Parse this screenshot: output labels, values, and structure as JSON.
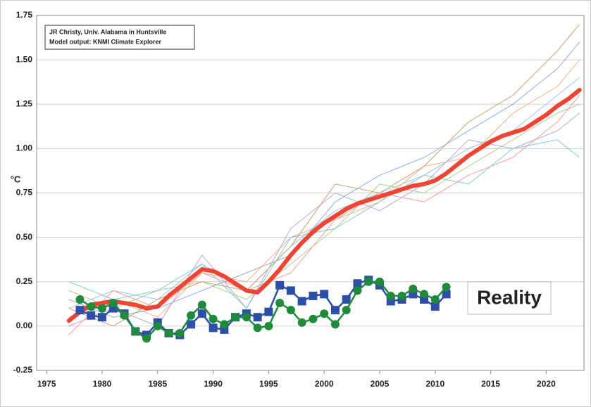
{
  "chart_data": {
    "type": "line",
    "annotations": [
      "JR Christy, Univ. Alabama in Huntsville",
      "Model output: KNMI Climate Explorer"
    ],
    "callout": "Reality",
    "ylabel": "°C",
    "xlim": [
      1974.1,
      2023.4
    ],
    "xticks": [
      1975,
      1980,
      1985,
      1990,
      1995,
      2000,
      2005,
      2010,
      2015,
      2020
    ],
    "ylim": [
      -0.25,
      1.75
    ],
    "yticks": [
      -0.25,
      {
        "value": 0,
        "label": "0.00"
      },
      0.25,
      {
        "value": 0.5,
        "label": "0.50"
      },
      0.75,
      {
        "value": 1,
        "label": "1.00"
      },
      1.25,
      {
        "value": 1.5,
        "label": "1.50"
      },
      1.75
    ],
    "grid": true,
    "series": [
      {
        "color": "#9dc3e6",
        "width": 1,
        "x": [
          1977,
          1981,
          1985,
          1989,
          1993,
          1997,
          2001,
          2005,
          2009,
          2013,
          2017,
          2021,
          2023
        ],
        "values": [
          0.1,
          0.2,
          0.15,
          0.35,
          0.2,
          0.45,
          0.65,
          0.75,
          0.85,
          1.0,
          1.1,
          1.3,
          1.4
        ]
      },
      {
        "color": "#f4b183",
        "width": 1,
        "x": [
          1977,
          1981,
          1985,
          1989,
          1993,
          1997,
          2001,
          2005,
          2009,
          2013,
          2017,
          2021,
          2023
        ],
        "values": [
          0.05,
          0.15,
          0.05,
          0.3,
          0.25,
          0.5,
          0.6,
          0.7,
          0.9,
          0.95,
          1.2,
          1.35,
          1.5
        ]
      },
      {
        "color": "#a9d18e",
        "width": 1,
        "x": [
          1977,
          1981,
          1985,
          1989,
          1993,
          1997,
          2001,
          2005,
          2009,
          2013,
          2017,
          2021,
          2023
        ],
        "values": [
          0.2,
          0.1,
          0.2,
          0.25,
          0.15,
          0.35,
          0.55,
          0.8,
          0.75,
          0.9,
          1.05,
          1.2,
          1.25
        ]
      },
      {
        "color": "#b4a7d6",
        "width": 1,
        "x": [
          1977,
          1981,
          1985,
          1989,
          1993,
          1997,
          2001,
          2005,
          2009,
          2013,
          2017,
          2021,
          2023
        ],
        "values": [
          0.0,
          0.1,
          0.0,
          0.4,
          0.1,
          0.55,
          0.75,
          0.65,
          0.8,
          1.05,
          1.0,
          1.1,
          1.2
        ]
      },
      {
        "color": "#8faadc",
        "width": 1,
        "x": [
          1977,
          1981,
          1985,
          1989,
          1993,
          1997,
          2001,
          2005,
          2009,
          2013,
          2017,
          2021,
          2023
        ],
        "values": [
          0.15,
          0.05,
          0.1,
          0.2,
          0.3,
          0.4,
          0.7,
          0.85,
          0.95,
          1.1,
          1.25,
          1.45,
          1.6
        ]
      },
      {
        "color": "#ff9999",
        "width": 1,
        "x": [
          1977,
          1981,
          1985,
          1989,
          1993,
          1997,
          2001,
          2005,
          2009,
          2013,
          2017,
          2021,
          2023
        ],
        "values": [
          -0.05,
          0.2,
          0.1,
          0.3,
          0.2,
          0.3,
          0.6,
          0.75,
          0.7,
          0.85,
          0.95,
          1.15,
          1.3
        ]
      },
      {
        "color": "#7fcdcd",
        "width": 1,
        "x": [
          1977,
          1981,
          1985,
          1989,
          1993,
          1997,
          2001,
          2005,
          2009,
          2013,
          2017,
          2021,
          2023
        ],
        "values": [
          0.25,
          0.15,
          0.2,
          0.35,
          0.1,
          0.5,
          0.55,
          0.7,
          0.85,
          0.8,
          1.0,
          1.05,
          0.95
        ]
      },
      {
        "color": "#c9a26b",
        "width": 1,
        "x": [
          1977,
          1981,
          1985,
          1989,
          1993,
          1997,
          2001,
          2005,
          2009,
          2013,
          2017,
          2021,
          2023
        ],
        "values": [
          0.1,
          0.0,
          0.15,
          0.25,
          0.2,
          0.45,
          0.8,
          0.75,
          0.9,
          1.15,
          1.3,
          1.55,
          1.7
        ]
      },
      {
        "color": "#ee4433",
        "width": 6,
        "x": [
          1977,
          1978,
          1979,
          1980,
          1981,
          1982,
          1983,
          1984,
          1985,
          1986,
          1987,
          1988,
          1989,
          1990,
          1991,
          1992,
          1993,
          1994,
          1995,
          1996,
          1997,
          1998,
          1999,
          2000,
          2001,
          2002,
          2003,
          2004,
          2005,
          2006,
          2007,
          2008,
          2009,
          2010,
          2011,
          2012,
          2013,
          2014,
          2015,
          2016,
          2017,
          2018,
          2019,
          2020,
          2021,
          2022,
          2023
        ],
        "values": [
          0.03,
          0.08,
          0.12,
          0.13,
          0.14,
          0.13,
          0.12,
          0.1,
          0.11,
          0.17,
          0.22,
          0.27,
          0.32,
          0.31,
          0.28,
          0.24,
          0.2,
          0.19,
          0.25,
          0.32,
          0.4,
          0.47,
          0.53,
          0.58,
          0.62,
          0.66,
          0.69,
          0.71,
          0.73,
          0.75,
          0.77,
          0.79,
          0.8,
          0.82,
          0.86,
          0.91,
          0.96,
          1.0,
          1.04,
          1.07,
          1.09,
          1.11,
          1.15,
          1.19,
          1.24,
          1.28,
          1.33
        ]
      },
      {
        "color": "#2e4fa8",
        "width": 2.5,
        "marker": "square",
        "x": [
          1978,
          1979,
          1980,
          1981,
          1982,
          1983,
          1984,
          1985,
          1986,
          1987,
          1988,
          1989,
          1990,
          1991,
          1992,
          1993,
          1994,
          1995,
          1996,
          1997,
          1998,
          1999,
          2000,
          2001,
          2002,
          2003,
          2004,
          2005,
          2006,
          2007,
          2008,
          2009,
          2010,
          2011
        ],
        "values": [
          0.09,
          0.06,
          0.05,
          0.1,
          0.07,
          -0.03,
          -0.05,
          0.02,
          -0.04,
          -0.05,
          0.01,
          0.07,
          -0.01,
          -0.02,
          0.05,
          0.07,
          0.05,
          0.08,
          0.23,
          0.2,
          0.14,
          0.17,
          0.18,
          0.09,
          0.15,
          0.24,
          0.26,
          0.23,
          0.14,
          0.15,
          0.18,
          0.15,
          0.11,
          0.18
        ]
      },
      {
        "color": "#1e8a3a",
        "width": 2.5,
        "marker": "circle",
        "x": [
          1978,
          1979,
          1980,
          1981,
          1982,
          1983,
          1984,
          1985,
          1986,
          1987,
          1988,
          1989,
          1990,
          1991,
          1992,
          1993,
          1994,
          1995,
          1996,
          1997,
          1998,
          1999,
          2000,
          2001,
          2002,
          2003,
          2004,
          2005,
          2006,
          2007,
          2008,
          2009,
          2010,
          2011
        ],
        "values": [
          0.15,
          0.11,
          0.1,
          0.13,
          0.06,
          -0.03,
          -0.07,
          0.0,
          -0.04,
          -0.04,
          0.06,
          0.12,
          0.04,
          0.01,
          0.05,
          0.05,
          -0.01,
          0.0,
          0.13,
          0.09,
          0.02,
          0.04,
          0.07,
          0.01,
          0.09,
          0.2,
          0.25,
          0.25,
          0.17,
          0.17,
          0.21,
          0.18,
          0.15,
          0.22
        ]
      }
    ]
  }
}
